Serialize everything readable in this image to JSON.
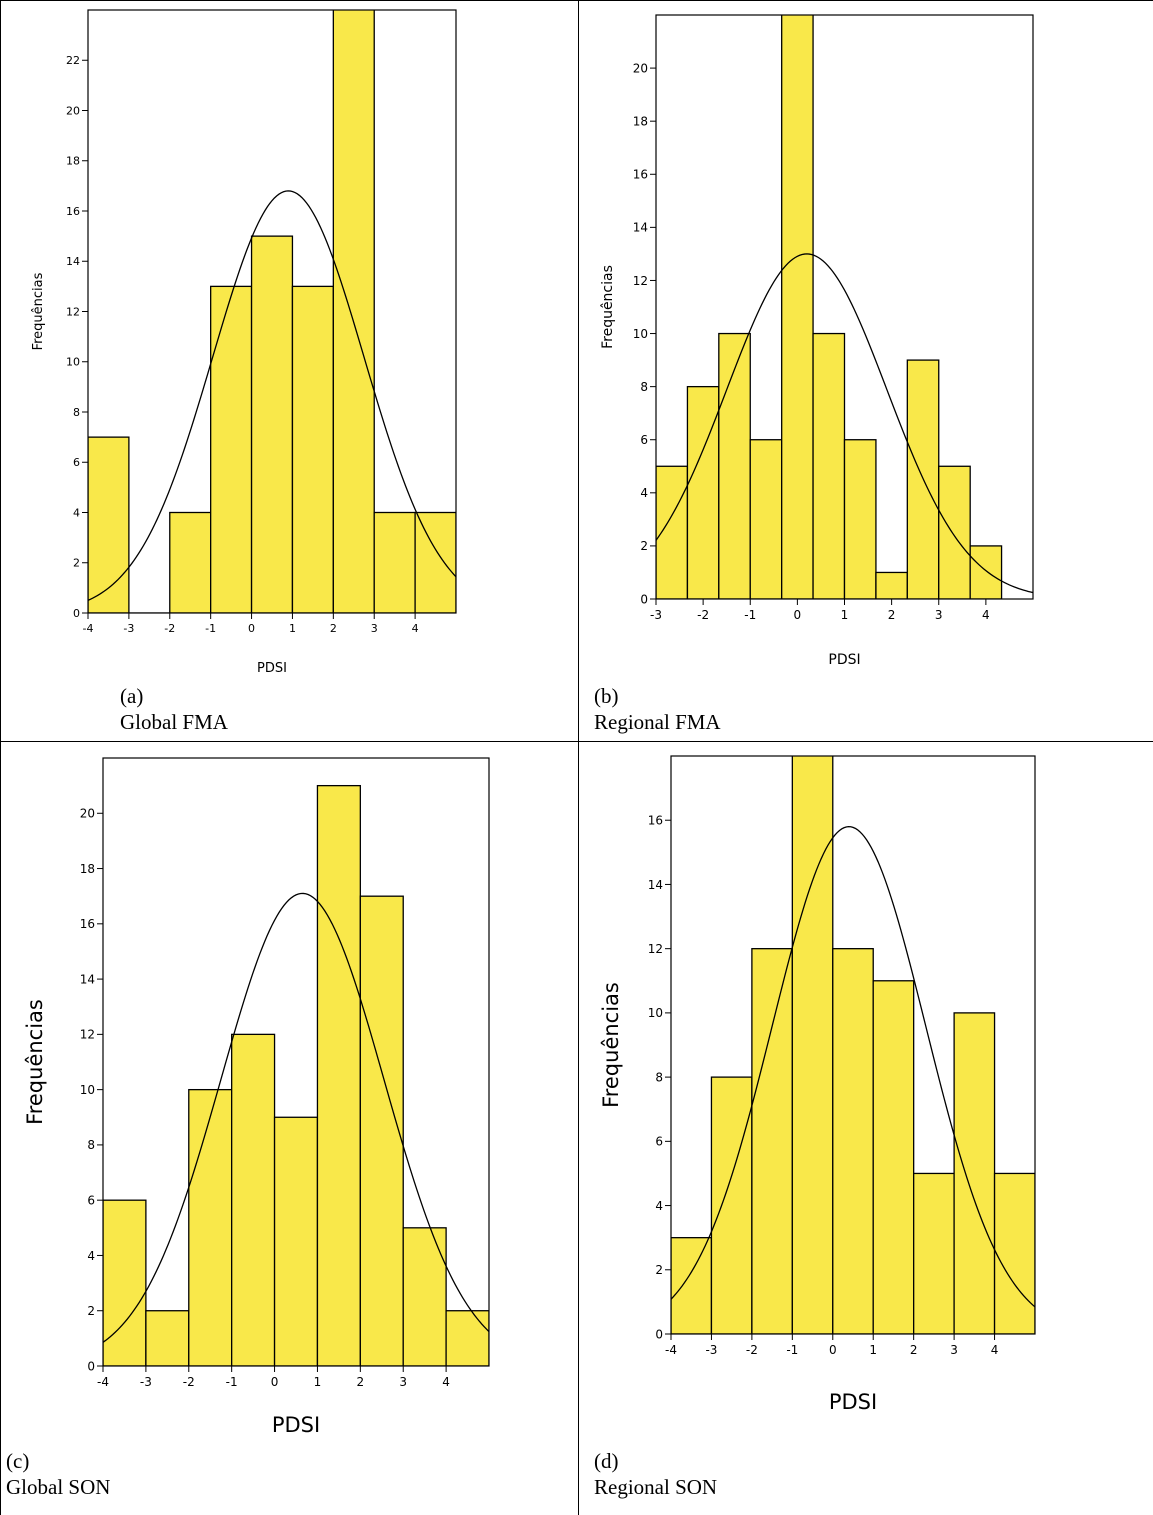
{
  "page": {
    "background": "#ffffff"
  },
  "style": {
    "bar_fill": "#f9e84a",
    "bar_stroke": "#000000",
    "curve_stroke": "#000000"
  },
  "chart_data": [
    {
      "id": "a",
      "type": "bar",
      "caption_letter": "(a)",
      "caption_name": "Global FMA",
      "xlabel": "PDSI",
      "ylabel": "Frequências",
      "xlim": [
        -4,
        5
      ],
      "ylim": [
        0,
        24
      ],
      "xticks": [
        -4,
        -3,
        -2,
        -1,
        0,
        1,
        2,
        3,
        4
      ],
      "yticks": [
        0,
        2,
        4,
        6,
        8,
        10,
        12,
        14,
        16,
        18,
        20,
        22
      ],
      "bin_edges": [
        -4,
        -3,
        -2,
        -1,
        0,
        1,
        2,
        3,
        4,
        5
      ],
      "values": [
        7,
        0,
        4,
        13,
        15,
        13,
        25,
        4,
        4
      ],
      "normal_curve": {
        "mean": 0.9,
        "peak": 16.8,
        "sd": 1.85
      }
    },
    {
      "id": "b",
      "type": "bar",
      "caption_letter": "(b)",
      "caption_name": "Regional FMA",
      "xlabel": "PDSI",
      "ylabel": "Frequências",
      "xlim": [
        -3,
        5
      ],
      "ylim": [
        0,
        22
      ],
      "xticks": [
        -3,
        -2,
        -1,
        0,
        1,
        2,
        3,
        4
      ],
      "yticks": [
        0,
        2,
        4,
        6,
        8,
        10,
        12,
        14,
        16,
        18,
        20
      ],
      "bin_edges": [
        -3,
        -2.333,
        -1.667,
        -1,
        -0.333,
        0.333,
        1,
        1.667,
        2.333,
        3,
        3.667,
        4.333
      ],
      "values": [
        5,
        8,
        10,
        6,
        23,
        10,
        6,
        1,
        9,
        5,
        2
      ],
      "normal_curve": {
        "mean": 0.2,
        "peak": 13,
        "sd": 1.7
      }
    },
    {
      "id": "c",
      "type": "bar",
      "caption_letter": "(c)",
      "caption_name": "Global SON",
      "xlabel": "PDSI",
      "ylabel": "Frequências",
      "xlim": [
        -4,
        5
      ],
      "ylim": [
        0,
        22
      ],
      "xticks": [
        -4,
        -3,
        -2,
        -1,
        0,
        1,
        2,
        3,
        4
      ],
      "yticks": [
        0,
        2,
        4,
        6,
        8,
        10,
        12,
        14,
        16,
        18,
        20
      ],
      "bin_edges": [
        -4,
        -3,
        -2,
        -1,
        0,
        1,
        2,
        3,
        4,
        5
      ],
      "values": [
        6,
        2,
        10,
        12,
        9,
        21,
        17,
        5,
        2
      ],
      "normal_curve": {
        "mean": 0.65,
        "peak": 17.1,
        "sd": 1.9
      }
    },
    {
      "id": "d",
      "type": "bar",
      "caption_letter": "(d)",
      "caption_name": "Regional SON",
      "xlabel": "PDSI",
      "ylabel": "Frequências",
      "xlim": [
        -4,
        5
      ],
      "ylim": [
        0,
        18
      ],
      "xticks": [
        -4,
        -3,
        -2,
        -1,
        0,
        1,
        2,
        3,
        4
      ],
      "yticks": [
        0,
        2,
        4,
        6,
        8,
        10,
        12,
        14,
        16
      ],
      "bin_edges": [
        -4,
        -3,
        -2,
        -1,
        0,
        1,
        2,
        3,
        4,
        5
      ],
      "values": [
        3,
        8,
        12,
        19,
        12,
        11,
        5,
        10,
        5
      ],
      "normal_curve": {
        "mean": 0.4,
        "peak": 15.8,
        "sd": 1.9
      }
    }
  ]
}
